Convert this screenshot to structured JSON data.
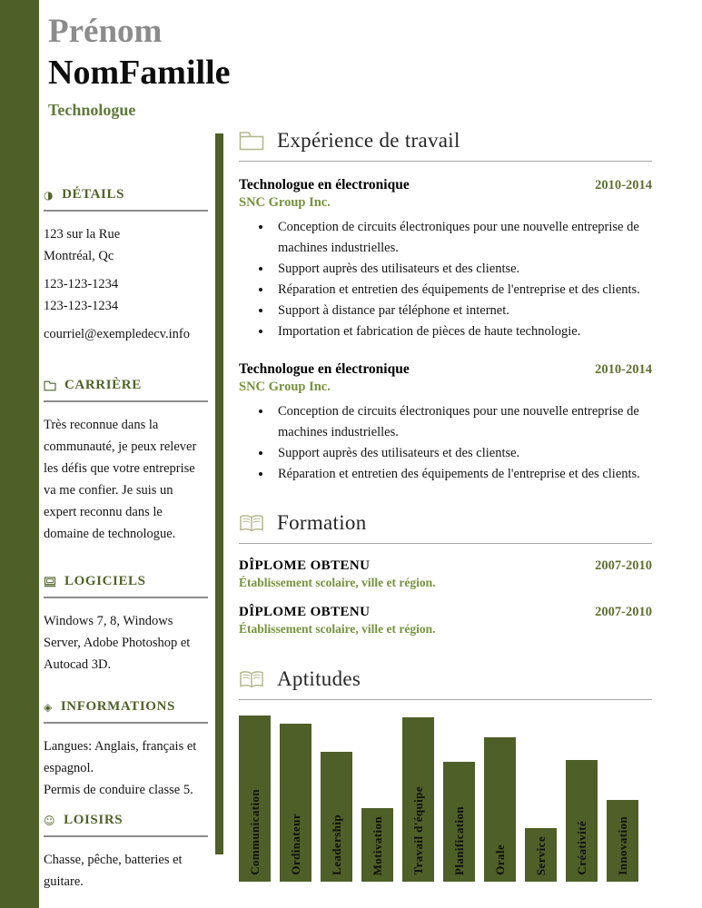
{
  "colors": {
    "olive_dark": "#4e5f28",
    "olive_heading": "#4f6228",
    "olive_light_text": "#76923c",
    "date_green": "#5f7031",
    "name_gray": "#8c8c8c",
    "icon_outline": "#b5b98e"
  },
  "header": {
    "first_name": "Prénom",
    "last_name": "NomFamille",
    "job_title": "Technologue"
  },
  "sidebar": {
    "details": {
      "title": "DÉTAILS",
      "icon": "contact-icon",
      "address_line1": "123 sur la Rue",
      "address_line2": "Montréal, Qc",
      "phone1": "123-123-1234",
      "phone2": "123-123-1234",
      "email": "courriel@exempledecv.info"
    },
    "career": {
      "title": "CARRIÈRE",
      "icon": "folder-icon",
      "text": "Très reconnue dans la communauté, je peux relever les défis que votre entreprise va me confier. Je suis un expert reconnu dans le domaine de technologue."
    },
    "software": {
      "title": "LOGICIELS",
      "icon": "computer-icon",
      "text": "Windows 7, 8, Windows Server, Adobe Photoshop et Autocad 3D."
    },
    "informations": {
      "title": "INFORMATIONS",
      "icon": "diamond-icon",
      "line1": "Langues: Anglais, français et espagnol.",
      "line2": "Permis de conduire classe 5."
    },
    "hobbies": {
      "title": "LOISIRS",
      "icon": "smiley-icon",
      "text": "Chasse, pêche, batteries et guitare."
    }
  },
  "main": {
    "experience": {
      "title": "Expérience de travail",
      "icon": "folder-icon",
      "jobs": [
        {
          "title": "Technologue en électronique",
          "company": "SNC Group Inc.",
          "dates": "2010-2014",
          "bullets": [
            "Conception de circuits électroniques pour une nouvelle entreprise de machines industrielles.",
            "Support auprès des utilisateurs et des clientse.",
            "Réparation et entretien des équipements de l'entreprise et des clients.",
            "Support à distance par téléphone et internet.",
            "Importation et fabrication de pièces de haute technologie."
          ]
        },
        {
          "title": "Technologue en électronique",
          "company": "SNC Group Inc.",
          "dates": "2010-2014",
          "bullets": [
            "Conception de circuits électroniques pour une nouvelle entreprise de machines industrielles.",
            "Support auprès des utilisateurs et des clientse.",
            "Réparation et entretien des équipements de l'entreprise et des clients."
          ]
        }
      ]
    },
    "education": {
      "title": "Formation",
      "icon": "open-book-icon",
      "entries": [
        {
          "degree": "DÎPLOME OBTENU",
          "school": "Établissement scolaire, ville et région.",
          "dates": "2007-2010"
        },
        {
          "degree": "DÎPLOME OBTENU",
          "school": "Établissement scolaire, ville et région.",
          "dates": "2007-2010"
        }
      ]
    },
    "skills": {
      "title": "Aptitudes",
      "icon": "open-book-icon"
    }
  },
  "chart_data": {
    "type": "bar",
    "title": "Aptitudes",
    "categories": [
      "Communication",
      "Ordinateur",
      "Leadership",
      "Motivation",
      "Travail d'équipe",
      "Planification",
      "Orale",
      "Service",
      "Créativité",
      "Innovation"
    ],
    "values": [
      100,
      95,
      78,
      44,
      99,
      72,
      87,
      32,
      73,
      49
    ],
    "ylim": [
      0,
      100
    ],
    "bar_color": "#4e5f28",
    "label_style": "rotated-inside-bottom",
    "axes_visible": false,
    "grid": false,
    "legend": "none"
  }
}
